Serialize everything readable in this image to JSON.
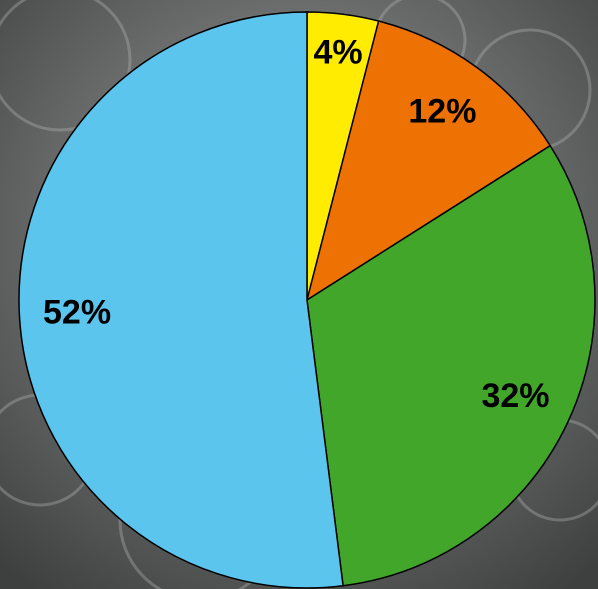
{
  "chart_data": {
    "type": "pie",
    "values": [
      4,
      12,
      32,
      52
    ],
    "value_labels": [
      "4%",
      "12%",
      "32%",
      "52%"
    ],
    "colors": [
      "#ffec00",
      "#ee7203",
      "#41a62a",
      "#5bc5ee"
    ]
  }
}
